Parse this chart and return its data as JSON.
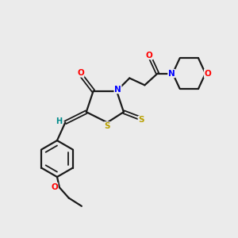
{
  "bg_color": "#ebebeb",
  "bond_color": "#1a1a1a",
  "atom_colors": {
    "O": "#ff0000",
    "N": "#0000ff",
    "S": "#b8a000",
    "C": "#1a1a1a",
    "H": "#008b8b"
  }
}
